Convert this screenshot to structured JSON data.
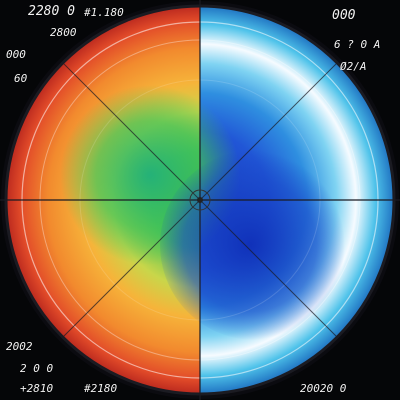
{
  "artwork": {
    "subject": "circular-gradient-dial",
    "colors": {
      "background": "#050608",
      "outer_warm": "#e8452a",
      "mid_warm": "#f3a73a",
      "inner_green": "#3cc05a",
      "core_blue": "#1a3fc4",
      "outer_cool": "#35b8e6",
      "rim": "#0c0c12"
    }
  },
  "labels": {
    "top_left_1": "2280 0",
    "top_left_2": "2800",
    "top_left_3": "000",
    "top_left_4": "60",
    "top_center": "#1.180",
    "top_right_1": "000",
    "top_right_2": "6 ? 0 A",
    "top_right_3": "Ø2/A",
    "bottom_left_1": "2002",
    "bottom_left_2": "2 0 0",
    "bottom_left_3": "+2810",
    "bottom_center": "#2180",
    "bottom_right": "20020 0"
  }
}
